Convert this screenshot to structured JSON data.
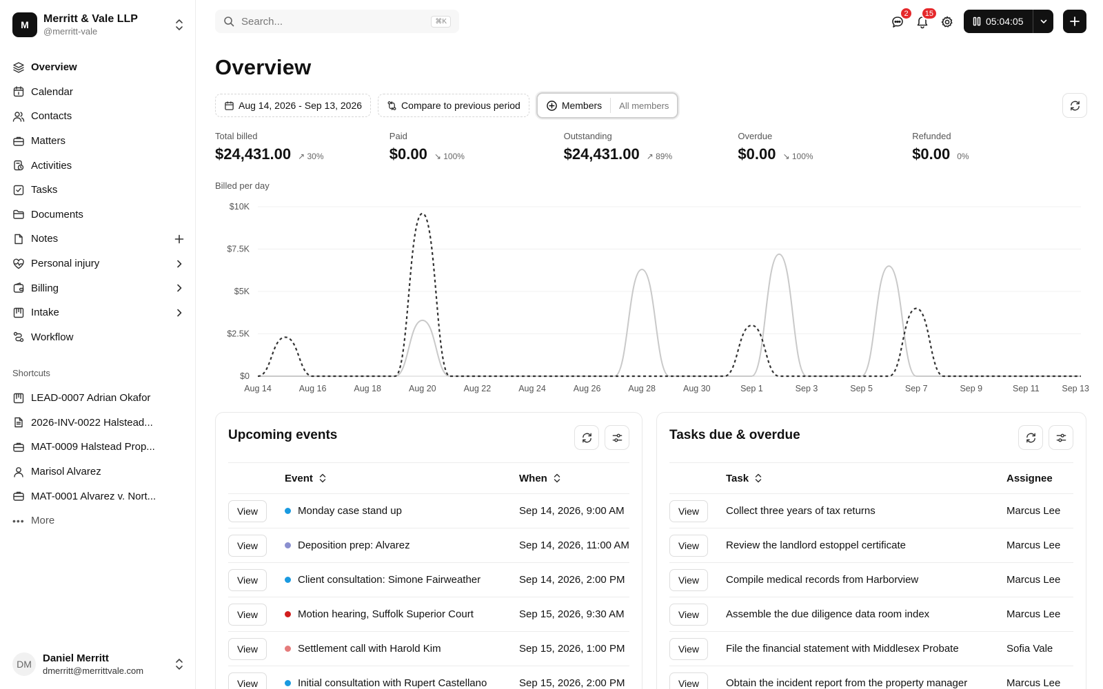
{
  "org": {
    "logo_letter": "M",
    "name": "Merritt & Vale LLP",
    "handle": "@merritt-vale"
  },
  "nav": [
    {
      "label": "Overview",
      "icon": "layers-icon",
      "trail": ""
    },
    {
      "label": "Calendar",
      "icon": "calendar-icon",
      "trail": ""
    },
    {
      "label": "Contacts",
      "icon": "users-icon",
      "trail": ""
    },
    {
      "label": "Matters",
      "icon": "briefcase-icon",
      "trail": ""
    },
    {
      "label": "Activities",
      "icon": "activities-icon",
      "trail": ""
    },
    {
      "label": "Tasks",
      "icon": "task-check-icon",
      "trail": ""
    },
    {
      "label": "Documents",
      "icon": "folder-icon",
      "trail": ""
    },
    {
      "label": "Notes",
      "icon": "note-icon",
      "trail": "plus"
    },
    {
      "label": "Personal injury",
      "icon": "heart-pulse-icon",
      "trail": "chevron"
    },
    {
      "label": "Billing",
      "icon": "wallet-icon",
      "trail": "chevron"
    },
    {
      "label": "Intake",
      "icon": "intake-icon",
      "trail": "chevron"
    },
    {
      "label": "Workflow",
      "icon": "workflow-icon",
      "trail": ""
    }
  ],
  "shortcuts": {
    "title": "Shortcuts",
    "items": [
      {
        "label": "LEAD-0007 Adrian Okafor",
        "icon": "intake-icon"
      },
      {
        "label": "2026-INV-0022 Halstead...",
        "icon": "invoice-icon"
      },
      {
        "label": "MAT-0009 Halstead Prop...",
        "icon": "briefcase-icon"
      },
      {
        "label": "Marisol Alvarez",
        "icon": "user-icon"
      },
      {
        "label": "MAT-0001 Alvarez v. Nort...",
        "icon": "briefcase-icon"
      }
    ],
    "more_label": "More"
  },
  "user": {
    "initials": "DM",
    "name": "Daniel Merritt",
    "email": "dmerritt@merrittvale.com"
  },
  "header": {
    "search_placeholder": "Search...",
    "search_shortcut": "⌘K",
    "messages_badge": "2",
    "notifications_badge": "15",
    "timer": "05:04:05"
  },
  "page": {
    "title": "Overview",
    "date_range": "Aug 14, 2026 - Sep 13, 2026",
    "compare_label": "Compare to previous period",
    "members_label": "Members",
    "members_value": "All members"
  },
  "metrics": [
    {
      "label": "Total billed",
      "value": "$24,431.00",
      "delta": "↗ 30%"
    },
    {
      "label": "Paid",
      "value": "$0.00",
      "delta": "↘ 100%"
    },
    {
      "label": "Outstanding",
      "value": "$24,431.00",
      "delta": "↗ 89%"
    },
    {
      "label": "Overdue",
      "value": "$0.00",
      "delta": "↘ 100%"
    },
    {
      "label": "Refunded",
      "value": "$0.00",
      "delta": "0%"
    }
  ],
  "chart_data": {
    "type": "line",
    "title": "Billed per day",
    "ylim": [
      0,
      10000
    ],
    "yticks": [
      "$0",
      "$2.5K",
      "$5K",
      "$7.5K",
      "$10K"
    ],
    "ytick_values": [
      0,
      2500,
      5000,
      7500,
      10000
    ],
    "xticks": [
      "Aug 14",
      "Aug 16",
      "Aug 18",
      "Aug 20",
      "Aug 22",
      "Aug 24",
      "Aug 26",
      "Aug 28",
      "Aug 30",
      "Sep 1",
      "Sep 3",
      "Sep 5",
      "Sep 7",
      "Sep 9",
      "Sep 11",
      "Sep 13"
    ],
    "grid": true,
    "series": [
      {
        "style": "solid",
        "color": "#c9c9c9",
        "values": [
          0,
          0,
          0,
          0,
          0,
          0,
          3300,
          0,
          0,
          0,
          0,
          0,
          0,
          0,
          6300,
          0,
          0,
          0,
          0,
          7200,
          0,
          0,
          0,
          6500,
          0,
          0,
          0,
          0,
          0,
          0,
          0
        ]
      },
      {
        "style": "dashed",
        "color": "#333333",
        "values": [
          0,
          2300,
          0,
          0,
          0,
          0,
          9600,
          0,
          0,
          0,
          0,
          0,
          0,
          0,
          0,
          0,
          0,
          0,
          3000,
          0,
          0,
          0,
          0,
          0,
          4000,
          0,
          0,
          0,
          0,
          0,
          0
        ]
      }
    ]
  },
  "events": {
    "title": "Upcoming events",
    "col_event": "Event",
    "col_when": "When",
    "view_label": "View",
    "rows": [
      {
        "event": "Monday case stand up",
        "when": "Sep 14, 2026, 9:00 AM",
        "color": "#1a9ae0"
      },
      {
        "event": "Deposition prep: Alvarez",
        "when": "Sep 14, 2026, 11:00 AM",
        "color": "#8a8fcf"
      },
      {
        "event": "Client consultation: Simone Fairweather",
        "when": "Sep 14, 2026, 2:00 PM",
        "color": "#1a9ae0"
      },
      {
        "event": "Motion hearing, Suffolk Superior Court",
        "when": "Sep 15, 2026, 9:30 AM",
        "color": "#d21d1d"
      },
      {
        "event": "Settlement call with Harold Kim",
        "when": "Sep 15, 2026, 1:00 PM",
        "color": "#e57b7b"
      },
      {
        "event": "Initial consultation with Rupert Castellano",
        "when": "Sep 15, 2026, 2:00 PM",
        "color": "#1a9ae0"
      }
    ]
  },
  "tasks": {
    "title": "Tasks due & overdue",
    "col_task": "Task",
    "col_assignee": "Assignee",
    "view_label": "View",
    "rows": [
      {
        "task": "Collect three years of tax returns",
        "assignee": "Marcus Lee"
      },
      {
        "task": "Review the landlord estoppel certificate",
        "assignee": "Marcus Lee"
      },
      {
        "task": "Compile medical records from Harborview",
        "assignee": "Marcus Lee"
      },
      {
        "task": "Assemble the due diligence data room index",
        "assignee": "Marcus Lee"
      },
      {
        "task": "File the financial statement with Middlesex Probate",
        "assignee": "Sofia Vale"
      },
      {
        "task": "Obtain the incident report from the property manager",
        "assignee": "Marcus Lee"
      }
    ]
  }
}
